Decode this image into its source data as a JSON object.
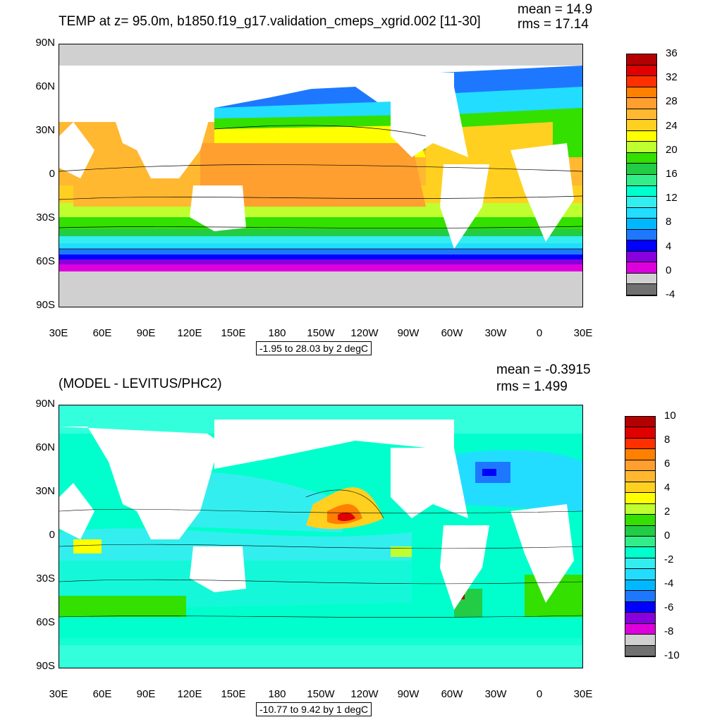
{
  "top": {
    "title": "TEMP at z=  95.0m, b1850.f19_g17.validation_cmeps_xgrid.002 [11-30]",
    "mean": "mean = 14.9",
    "rms": "rms = 17.14",
    "range": "-1.95 to 28.03 by 2 degC",
    "lat_ticks": [
      "90N",
      "60N",
      "30N",
      "0",
      "30S",
      "60S",
      "90S"
    ],
    "lon_ticks": [
      "30E",
      "60E",
      "90E",
      "120E",
      "150E",
      "180",
      "150W",
      "120W",
      "90W",
      "60W",
      "30W",
      "0",
      "30E"
    ],
    "colorbar_labels": [
      "36",
      "32",
      "28",
      "24",
      "20",
      "16",
      "12",
      "8",
      "4",
      "0",
      "-4"
    ],
    "colorbar_colors": [
      "#b30000",
      "#e00000",
      "#ff3000",
      "#ff7f00",
      "#ff9f30",
      "#ffb830",
      "#ffd020",
      "#ffff00",
      "#bfff30",
      "#33e000",
      "#22cc44",
      "#33ee88",
      "#00ffcc",
      "#33eeee",
      "#22ddff",
      "#00b8ff",
      "#1e78ff",
      "#0000ff",
      "#8800dd",
      "#dd00dd",
      "#d0d0d0",
      "#707070"
    ]
  },
  "bottom": {
    "title": "(MODEL - LEVITUS/PHC2)",
    "mean": "mean = -0.3915",
    "rms": "rms = 1.499",
    "range": "-10.77 to 9.42 by 1 degC",
    "lat_ticks": [
      "90N",
      "60N",
      "30N",
      "0",
      "30S",
      "60S",
      "90S"
    ],
    "lon_ticks": [
      "30E",
      "60E",
      "90E",
      "120E",
      "150E",
      "180",
      "150W",
      "120W",
      "90W",
      "60W",
      "30W",
      "0",
      "30E"
    ],
    "colorbar_labels": [
      "10",
      "8",
      "6",
      "4",
      "2",
      "0",
      "-2",
      "-4",
      "-6",
      "-8",
      "-10"
    ],
    "colorbar_colors": [
      "#b30000",
      "#e00000",
      "#ff3000",
      "#ff7f00",
      "#ff9f30",
      "#ffb830",
      "#ffd020",
      "#ffff00",
      "#bfff30",
      "#33e000",
      "#22cc44",
      "#33ee88",
      "#00ffcc",
      "#33eeee",
      "#22ddff",
      "#00b8ff",
      "#1e78ff",
      "#0000ff",
      "#8800dd",
      "#dd00dd",
      "#d0d0d0",
      "#707070"
    ]
  }
}
